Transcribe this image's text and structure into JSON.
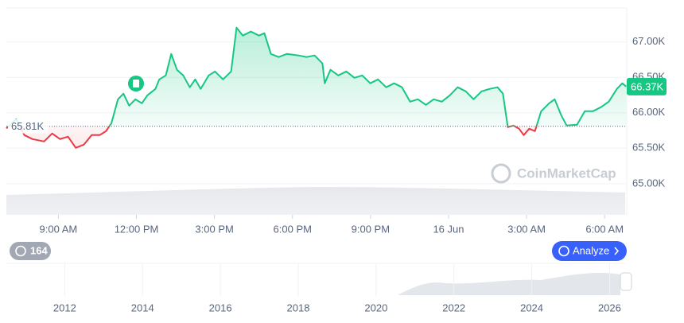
{
  "chart_data": {
    "type": "line",
    "series": [
      {
        "color": "#16c784",
        "below_color": "#ea3943",
        "x": [
          7.0,
          7.38,
          7.69,
          8.0,
          8.45,
          8.76,
          9.06,
          9.37,
          9.67,
          9.98,
          10.28,
          10.59,
          10.83,
          11.04,
          11.29,
          11.5,
          11.72,
          11.96,
          12.21,
          12.42,
          12.73,
          12.88,
          13.13,
          13.34,
          13.56,
          13.8,
          14.05,
          14.26,
          14.47,
          14.78,
          15.02,
          15.33,
          15.64,
          15.85,
          16.09,
          16.4,
          16.71,
          16.92,
          17.17,
          17.47,
          17.78,
          18.24,
          18.54,
          18.85,
          19.15,
          19.24,
          19.46,
          19.76,
          20.07,
          20.38,
          20.68,
          20.99,
          21.29,
          21.6,
          21.91,
          22.21,
          22.52,
          22.82,
          23.13,
          23.43,
          23.74,
          24.05,
          24.35,
          24.66,
          24.96,
          25.27,
          25.57,
          25.88,
          26.09,
          26.28,
          26.49,
          26.71,
          26.89,
          27.1,
          27.32,
          27.56,
          27.87,
          28.08,
          28.33,
          28.54,
          28.94,
          29.24,
          29.55,
          29.86,
          30.16,
          30.47,
          30.68,
          30.83
        ],
        "values": [
          65780,
          65910,
          65685,
          65629,
          65595,
          65708,
          65629,
          65663,
          65506,
          65551,
          65685,
          65685,
          65742,
          65854,
          66191,
          66270,
          66101,
          66191,
          66135,
          66247,
          66337,
          66472,
          66528,
          66831,
          66607,
          66528,
          66360,
          66472,
          66337,
          66528,
          66584,
          66472,
          66584,
          67202,
          67090,
          67146,
          67090,
          67124,
          66831,
          66787,
          66831,
          66809,
          66787,
          66809,
          66697,
          66416,
          66607,
          66528,
          66584,
          66494,
          66528,
          66416,
          66472,
          66360,
          66416,
          66360,
          66157,
          66191,
          66112,
          66191,
          66157,
          66247,
          66360,
          66303,
          66191,
          66303,
          66337,
          66360,
          66270,
          65798,
          65820,
          65775,
          65685,
          65775,
          65742,
          66022,
          66135,
          66191,
          65966,
          65820,
          65831,
          66022,
          66022,
          66079,
          66157,
          66337,
          66416,
          66370
        ]
      }
    ],
    "baseline": {
      "value": 65810,
      "label": "65.81K"
    },
    "last_price": {
      "value": 66370,
      "label": "66.37K"
    },
    "xlim": [
      7.0,
      30.85
    ],
    "xticks": [
      {
        "value": 9,
        "label": "9:00 AM"
      },
      {
        "value": 12,
        "label": "12:00 PM"
      },
      {
        "value": 15,
        "label": "3:00 PM"
      },
      {
        "value": 18,
        "label": "6:00 PM"
      },
      {
        "value": 21,
        "label": "9:00 PM"
      },
      {
        "value": 24,
        "label": "16 Jun"
      },
      {
        "value": 27,
        "label": "3:00 AM"
      },
      {
        "value": 30,
        "label": "6:00 AM"
      }
    ],
    "ylim": [
      64560,
      67480
    ],
    "yticks": [
      {
        "value": 65000,
        "label": "65.00K"
      },
      {
        "value": 65500,
        "label": "65.50K"
      },
      {
        "value": 66000,
        "label": "66.00K"
      },
      {
        "value": 66500,
        "label": "66.50K"
      },
      {
        "value": 67000,
        "label": "67.00K"
      }
    ],
    "grid": true,
    "navigator": {
      "xlim": [
        2010.5,
        2026.4
      ],
      "xticks": [
        2012,
        2014,
        2016,
        2018,
        2020,
        2022,
        2024,
        2026
      ]
    }
  },
  "ui": {
    "history_count": "164",
    "analyze": "Analyze",
    "watermark": "CoinMarketCap"
  }
}
